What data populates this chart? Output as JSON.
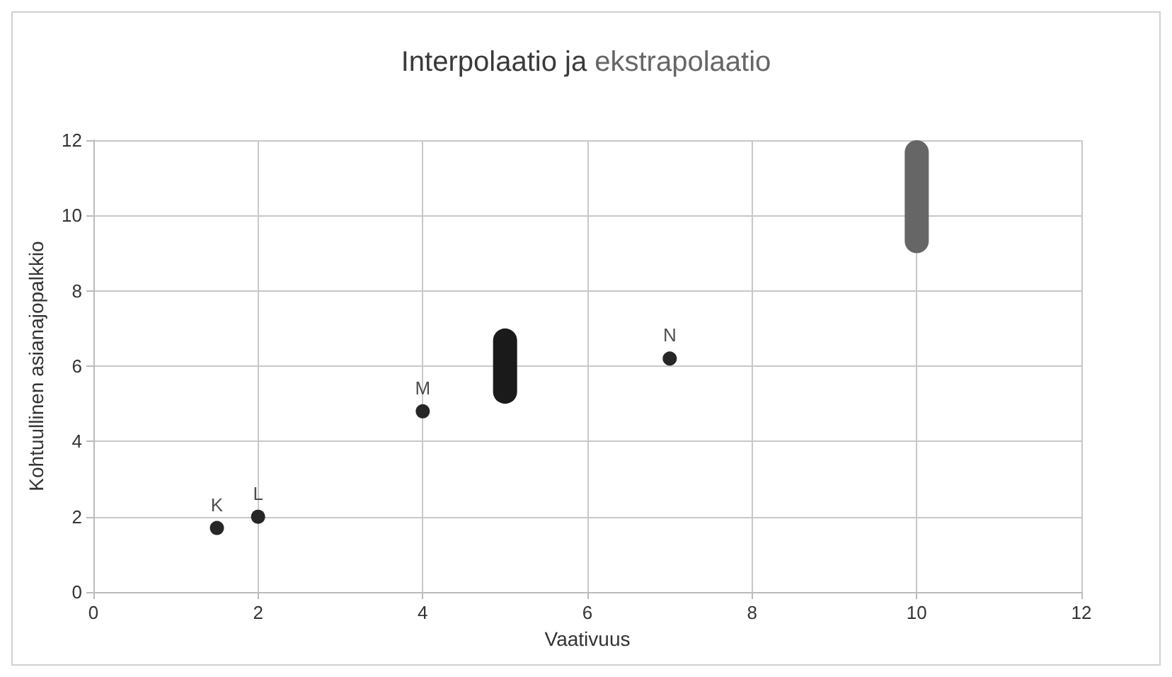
{
  "chart_data": {
    "type": "scatter",
    "title": "Interpolaatio ja ekstrapolaatio",
    "xlabel": "Vaativuus",
    "ylabel": "Kohtuullinen asianajopalkkio",
    "xlim": [
      0,
      12
    ],
    "ylim": [
      0,
      12
    ],
    "xticks": [
      0,
      2,
      4,
      6,
      8,
      10,
      12
    ],
    "yticks": [
      0,
      2,
      4,
      6,
      8,
      10,
      12
    ],
    "grid": true,
    "marker": "circle",
    "series": [
      {
        "color": "#262626",
        "x": [
          1.5,
          2,
          4,
          7
        ],
        "values": [
          1.7,
          2,
          4.8,
          6.2
        ]
      },
      {
        "type": "bar",
        "color": "#1a1a1a",
        "x": [
          5
        ],
        "base": [
          5
        ],
        "values": [
          2
        ]
      },
      {
        "type": "bar",
        "color": "#666666",
        "x": [
          10
        ],
        "base": [
          9
        ],
        "values": [
          3
        ]
      }
    ],
    "annotations": [
      {
        "text": "K",
        "x": 1.5,
        "y": 1.7
      },
      {
        "text": "L",
        "x": 2,
        "y": 2
      },
      {
        "text": "M",
        "x": 4,
        "y": 4.8
      },
      {
        "text": "N",
        "x": 7,
        "y": 6.2
      }
    ]
  }
}
